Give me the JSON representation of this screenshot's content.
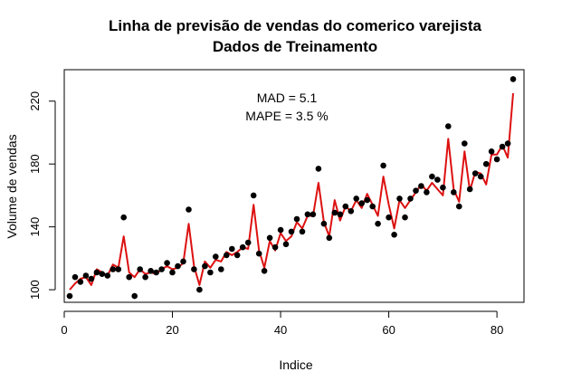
{
  "chart_data": {
    "type": "scatter",
    "title": "Linha de previsão de vendas do comerico varejista",
    "subtitle": "Dados de Treinamento",
    "xlabel": "Indice",
    "ylabel": "Volume de vendas",
    "xlim": [
      0,
      85
    ],
    "ylim": [
      92,
      240
    ],
    "x_ticks": [
      0,
      20,
      40,
      60,
      80
    ],
    "y_ticks": [
      100,
      140,
      180,
      220
    ],
    "grid": false,
    "annotations": [
      "MAD = 5.1",
      "MAPE = 3.5 %"
    ],
    "colors": {
      "points": "#000000",
      "forecast_line": "#dd1111"
    },
    "series": [
      {
        "kind": "points",
        "x": [
          1,
          2,
          3,
          4,
          5,
          6,
          7,
          8,
          9,
          10,
          11,
          12,
          13,
          14,
          15,
          16,
          17,
          18,
          19,
          20,
          21,
          22,
          23,
          24,
          25,
          26,
          27,
          28,
          29,
          30,
          31,
          32,
          33,
          34,
          35,
          36,
          37,
          38,
          39,
          40,
          41,
          42,
          43,
          44,
          45,
          46,
          47,
          48,
          49,
          50,
          51,
          52,
          53,
          54,
          55,
          56,
          57,
          58,
          59,
          60,
          61,
          62,
          63,
          64,
          65,
          66,
          67,
          68,
          69,
          70,
          71,
          72,
          73,
          74,
          75,
          76,
          77,
          78,
          79,
          80,
          81,
          82,
          83
        ],
        "y": [
          96,
          108,
          105,
          109,
          107,
          111,
          110,
          109,
          113,
          113,
          146,
          108,
          96,
          113,
          108,
          112,
          111,
          113,
          117,
          111,
          115,
          118,
          151,
          113,
          100,
          115,
          111,
          121,
          113,
          122,
          126,
          122,
          127,
          130,
          160,
          123,
          112,
          133,
          127,
          138,
          129,
          137,
          145,
          137,
          148,
          148,
          177,
          142,
          133,
          149,
          148,
          153,
          150,
          158,
          155,
          157,
          153,
          142,
          179,
          146,
          135,
          158,
          146,
          158,
          163,
          166,
          162,
          172,
          170,
          165,
          204,
          162,
          153,
          193,
          164,
          174,
          172,
          180,
          188,
          183,
          191,
          193,
          234
        ]
      },
      {
        "kind": "line",
        "x": [
          1,
          2,
          3,
          4,
          5,
          6,
          7,
          8,
          9,
          10,
          11,
          12,
          13,
          14,
          15,
          16,
          17,
          18,
          19,
          20,
          21,
          22,
          23,
          24,
          25,
          26,
          27,
          28,
          29,
          30,
          31,
          32,
          33,
          34,
          35,
          36,
          37,
          38,
          39,
          40,
          41,
          42,
          43,
          44,
          45,
          46,
          47,
          48,
          49,
          50,
          51,
          52,
          53,
          54,
          55,
          56,
          57,
          58,
          59,
          60,
          61,
          62,
          63,
          64,
          65,
          66,
          67,
          68,
          69,
          70,
          71,
          72,
          73,
          74,
          75,
          76,
          77,
          78,
          79,
          80,
          81,
          82,
          83
        ],
        "y": [
          100,
          104,
          107,
          108,
          103,
          113,
          111,
          109,
          116,
          114,
          134,
          111,
          108,
          113,
          110,
          111,
          110,
          113,
          115,
          113,
          114,
          117,
          142,
          115,
          103,
          118,
          114,
          119,
          118,
          124,
          122,
          124,
          127,
          126,
          154,
          125,
          114,
          131,
          125,
          136,
          131,
          134,
          143,
          139,
          147,
          147,
          168,
          143,
          134,
          157,
          144,
          153,
          150,
          157,
          152,
          161,
          154,
          147,
          172,
          154,
          139,
          157,
          152,
          157,
          162,
          167,
          163,
          168,
          164,
          160,
          196,
          164,
          156,
          188,
          163,
          175,
          174,
          167,
          186,
          186,
          192,
          184,
          225
        ]
      }
    ]
  }
}
